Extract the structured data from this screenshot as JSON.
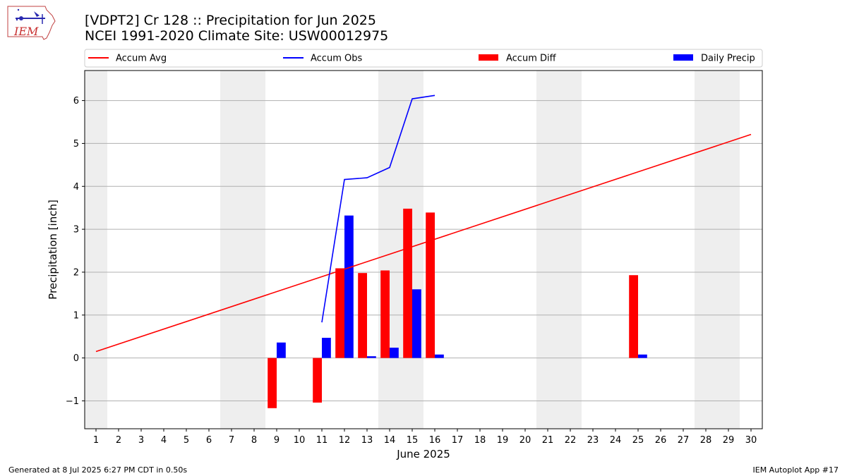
{
  "header": {
    "logo_text": "IEM",
    "title": "[VDPT2] Cr 128 :: Precipitation for Jun 2025",
    "subtitle": "NCEI 1991-2020 Climate Site: USW00012975"
  },
  "footer": {
    "generated": "Generated at 8 Jul 2025 6:27 PM CDT in 0.50s",
    "app": "IEM Autoplot App #17"
  },
  "colors": {
    "accum_avg": "#ff0000",
    "accum_obs": "#0000ff",
    "accum_diff": "#ff0000",
    "daily_precip": "#0000ff",
    "weekend_shade": "#eeeeee",
    "grid": "#b0b0b0"
  },
  "chart_data": {
    "type": "bar",
    "xlabel": "June 2025",
    "ylabel": "Precipitation [inch]",
    "xlim": [
      0.5,
      30.5
    ],
    "ylim": [
      -1.65,
      6.7
    ],
    "x_ticks": [
      1,
      2,
      3,
      4,
      5,
      6,
      7,
      8,
      9,
      10,
      11,
      12,
      13,
      14,
      15,
      16,
      17,
      18,
      19,
      20,
      21,
      22,
      23,
      24,
      25,
      26,
      27,
      28,
      29,
      30
    ],
    "y_ticks": [
      -1,
      0,
      1,
      2,
      3,
      4,
      5,
      6
    ],
    "y_tick_labels": [
      "−1",
      "0",
      "1",
      "2",
      "3",
      "4",
      "5",
      "6"
    ],
    "grid": "horizontal",
    "legend_position": "top, above plot",
    "legend": [
      "Accum Avg",
      "Accum Obs",
      "Accum Diff",
      "Daily Precip"
    ],
    "weekend_bands": [
      [
        0.5,
        1.5
      ],
      [
        6.5,
        8.5
      ],
      [
        13.5,
        15.5
      ],
      [
        20.5,
        22.5
      ],
      [
        27.5,
        29.5
      ]
    ],
    "accum_avg": {
      "name": "Accum Avg",
      "x": [
        1,
        30
      ],
      "values": [
        0.15,
        5.21
      ]
    },
    "accum_obs": {
      "name": "Accum Obs",
      "x": [
        11,
        12,
        13,
        14,
        15,
        16
      ],
      "values": [
        0.83,
        4.16,
        4.2,
        4.44,
        6.04,
        6.12
      ]
    },
    "accum_diff": {
      "name": "Accum Diff",
      "x": [
        9,
        11,
        12,
        13,
        14,
        15,
        16,
        25
      ],
      "values": [
        -1.17,
        -1.04,
        2.09,
        1.98,
        2.04,
        3.48,
        3.39,
        1.93
      ]
    },
    "daily_precip": {
      "name": "Daily Precip",
      "x": [
        9,
        11,
        12,
        13,
        14,
        15,
        16,
        25
      ],
      "values": [
        0.36,
        0.47,
        3.32,
        0.04,
        0.24,
        1.6,
        0.08,
        0.08
      ]
    }
  }
}
